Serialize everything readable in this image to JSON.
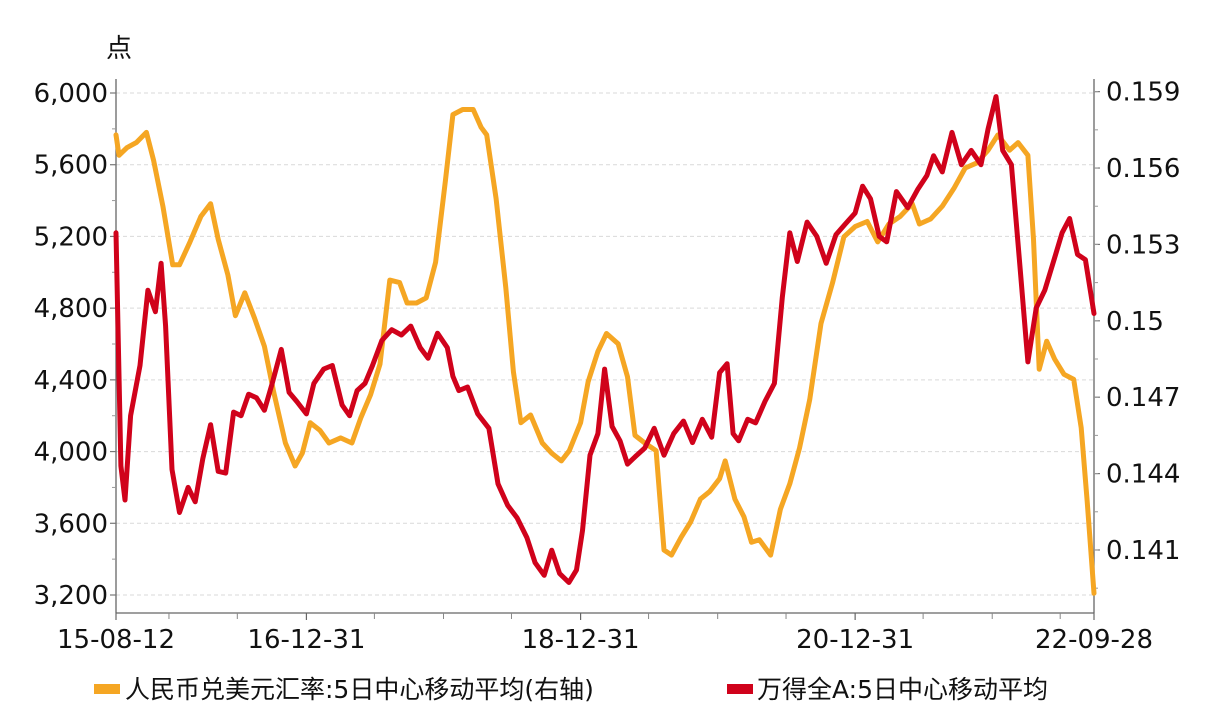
{
  "chart_data": {
    "type": "line",
    "left_unit": "点",
    "grid": true,
    "legend_position": "bottom",
    "x_tick_labels": [
      "15-08-12",
      "16-12-31",
      "18-12-31",
      "20-12-31",
      "22-09-28"
    ],
    "x_range": [
      "2015-08-12",
      "2022-09-28"
    ],
    "left_axis": {
      "ticks": [
        "3,200",
        "3,600",
        "4,000",
        "4,400",
        "4,800",
        "5,200",
        "5,600",
        "6,000"
      ],
      "range": [
        3200,
        6000
      ]
    },
    "right_axis": {
      "ticks": [
        "0.141",
        "0.144",
        "0.147",
        "0.15",
        "0.153",
        "0.156",
        "0.159"
      ],
      "range": [
        0.1388,
        0.1593
      ]
    },
    "series": [
      {
        "name": "人民币兑美元汇率:5日中心移动平均(右轴)",
        "axis": "right",
        "color": "#F5A623",
        "x": [
          "2015-08-12",
          "2015-08-20",
          "2015-09-10",
          "2015-10-05",
          "2015-11-01",
          "2015-11-20",
          "2015-12-15",
          "2016-01-10",
          "2016-01-28",
          "2016-02-25",
          "2016-03-25",
          "2016-04-20",
          "2016-05-10",
          "2016-06-05",
          "2016-06-25",
          "2016-07-20",
          "2016-08-15",
          "2016-09-10",
          "2016-10-05",
          "2016-11-05",
          "2016-12-01",
          "2016-12-20",
          "2017-01-10",
          "2017-02-05",
          "2017-03-01",
          "2017-04-01",
          "2017-05-01",
          "2017-05-25",
          "2017-06-20",
          "2017-07-15",
          "2017-08-10",
          "2017-09-05",
          "2017-09-25",
          "2017-10-20",
          "2017-11-15",
          "2017-12-10",
          "2018-01-05",
          "2018-01-25",
          "2018-02-20",
          "2018-03-20",
          "2018-04-10",
          "2018-04-25",
          "2018-05-20",
          "2018-06-15",
          "2018-07-05",
          "2018-07-25",
          "2018-08-20",
          "2018-09-20",
          "2018-10-15",
          "2018-11-10",
          "2018-12-01",
          "2018-12-31",
          "2019-01-20",
          "2019-02-15",
          "2019-03-10",
          "2019-04-10",
          "2019-05-05",
          "2019-05-25",
          "2019-06-20",
          "2019-07-20",
          "2019-08-10",
          "2019-08-30",
          "2019-09-25",
          "2019-10-20",
          "2019-11-15",
          "2019-12-10",
          "2020-01-05",
          "2020-01-20",
          "2020-02-15",
          "2020-03-10",
          "2020-03-30",
          "2020-04-20",
          "2020-05-20",
          "2020-06-15",
          "2020-07-10",
          "2020-08-05",
          "2020-09-01",
          "2020-10-01",
          "2020-11-01",
          "2020-12-01",
          "2020-12-31",
          "2021-02-01",
          "2021-03-01",
          "2021-03-31",
          "2021-04-30",
          "2021-06-01",
          "2021-06-20",
          "2021-07-20",
          "2021-08-20",
          "2021-09-20",
          "2021-10-20",
          "2021-11-20",
          "2021-12-20",
          "2022-01-15",
          "2022-02-15",
          "2022-03-10",
          "2022-04-05",
          "2022-04-20",
          "2022-05-05",
          "2022-05-25",
          "2022-06-15",
          "2022-07-10",
          "2022-08-05",
          "2022-08-25",
          "2022-09-10",
          "2022-09-28"
        ],
        "values": [
          0.1573,
          0.1565,
          0.1568,
          0.157,
          0.1574,
          0.1563,
          0.1545,
          0.1522,
          0.1522,
          0.1531,
          0.1541,
          0.1546,
          0.1532,
          0.1518,
          0.1502,
          0.1511,
          0.1501,
          0.149,
          0.1472,
          0.1452,
          0.1443,
          0.1448,
          0.146,
          0.1457,
          0.1452,
          0.1454,
          0.1452,
          0.1462,
          0.1471,
          0.1483,
          0.1516,
          0.1515,
          0.1507,
          0.1507,
          0.1509,
          0.1523,
          0.1555,
          0.1581,
          0.1583,
          0.1583,
          0.1576,
          0.1573,
          0.1548,
          0.1513,
          0.148,
          0.146,
          0.1463,
          0.1452,
          0.1448,
          0.1445,
          0.1449,
          0.146,
          0.1476,
          0.1488,
          0.1495,
          0.1491,
          0.1478,
          0.1455,
          0.1452,
          0.1449,
          0.141,
          0.1408,
          0.1415,
          0.1421,
          0.143,
          0.1433,
          0.1438,
          0.1445,
          0.143,
          0.1423,
          0.1413,
          0.1414,
          0.1408,
          0.1426,
          0.1436,
          0.145,
          0.1469,
          0.1499,
          0.1515,
          0.1533,
          0.1537,
          0.1539,
          0.1531,
          0.1538,
          0.1541,
          0.1546,
          0.1538,
          0.154,
          0.1545,
          0.1552,
          0.156,
          0.1562,
          0.1567,
          0.1573,
          0.1567,
          0.157,
          0.1565,
          0.1532,
          0.1481,
          0.1492,
          0.1485,
          0.1479,
          0.1477,
          0.1458,
          0.1429,
          0.1393
        ]
      },
      {
        "name": "万得全A:5日中心移动平均",
        "axis": "left",
        "color": "#D0021B",
        "x": [
          "2015-08-12",
          "2015-08-25",
          "2015-09-05",
          "2015-09-20",
          "2015-10-15",
          "2015-11-05",
          "2015-11-25",
          "2015-12-10",
          "2015-12-22",
          "2016-01-08",
          "2016-01-28",
          "2016-02-20",
          "2016-03-10",
          "2016-03-30",
          "2016-04-20",
          "2016-05-10",
          "2016-05-30",
          "2016-06-20",
          "2016-07-10",
          "2016-07-30",
          "2016-08-20",
          "2016-09-10",
          "2016-10-01",
          "2016-10-25",
          "2016-11-15",
          "2016-12-05",
          "2016-12-31",
          "2017-01-20",
          "2017-02-15",
          "2017-03-10",
          "2017-04-05",
          "2017-04-25",
          "2017-05-15",
          "2017-06-05",
          "2017-06-25",
          "2017-07-20",
          "2017-08-15",
          "2017-09-10",
          "2017-10-05",
          "2017-10-30",
          "2017-11-20",
          "2017-12-15",
          "2018-01-10",
          "2018-01-25",
          "2018-02-10",
          "2018-03-05",
          "2018-04-01",
          "2018-05-01",
          "2018-05-25",
          "2018-06-20",
          "2018-07-15",
          "2018-08-10",
          "2018-09-01",
          "2018-09-25",
          "2018-10-15",
          "2018-11-05",
          "2018-11-30",
          "2018-12-20",
          "2019-01-05",
          "2019-01-25",
          "2019-02-15",
          "2019-03-05",
          "2019-03-25",
          "2019-04-15",
          "2019-05-05",
          "2019-05-25",
          "2019-06-20",
          "2019-07-15",
          "2019-08-10",
          "2019-09-05",
          "2019-10-01",
          "2019-10-25",
          "2019-11-20",
          "2019-12-15",
          "2020-01-05",
          "2020-01-25",
          "2020-02-10",
          "2020-02-25",
          "2020-03-20",
          "2020-04-10",
          "2020-05-05",
          "2020-05-30",
          "2020-06-20",
          "2020-07-10",
          "2020-07-30",
          "2020-08-25",
          "2020-09-20",
          "2020-10-15",
          "2020-11-10",
          "2020-12-05",
          "2020-12-31",
          "2021-01-20",
          "2021-02-10",
          "2021-03-05",
          "2021-03-25",
          "2021-04-20",
          "2021-05-20",
          "2021-06-15",
          "2021-07-10",
          "2021-07-28",
          "2021-08-20",
          "2021-09-15",
          "2021-10-10",
          "2021-11-05",
          "2021-12-01",
          "2021-12-20",
          "2022-01-10",
          "2022-01-28",
          "2022-02-20",
          "2022-03-15",
          "2022-04-05",
          "2022-04-27",
          "2022-05-20",
          "2022-06-15",
          "2022-07-05",
          "2022-07-25",
          "2022-08-15",
          "2022-09-05",
          "2022-09-28"
        ],
        "values": [
          5220,
          3920,
          3730,
          4200,
          4480,
          4900,
          4780,
          5050,
          4700,
          3900,
          3660,
          3800,
          3720,
          3960,
          4150,
          3890,
          3880,
          4220,
          4200,
          4320,
          4300,
          4230,
          4380,
          4570,
          4330,
          4280,
          4210,
          4380,
          4460,
          4480,
          4260,
          4200,
          4340,
          4380,
          4480,
          4620,
          4680,
          4650,
          4700,
          4580,
          4520,
          4660,
          4580,
          4420,
          4340,
          4360,
          4210,
          4130,
          3820,
          3700,
          3630,
          3520,
          3380,
          3310,
          3450,
          3320,
          3270,
          3340,
          3560,
          3980,
          4100,
          4460,
          4140,
          4060,
          3930,
          3970,
          4020,
          4130,
          3980,
          4100,
          4170,
          4050,
          4180,
          4080,
          4440,
          4490,
          4100,
          4060,
          4180,
          4160,
          4280,
          4380,
          4860,
          5220,
          5060,
          5280,
          5200,
          5050,
          5210,
          5270,
          5330,
          5480,
          5410,
          5200,
          5170,
          5450,
          5360,
          5460,
          5540,
          5650,
          5560,
          5780,
          5600,
          5680,
          5600,
          5800,
          5980,
          5680,
          5600,
          5030,
          4500,
          4800,
          4900,
          5080,
          5220,
          5300,
          5100,
          5070,
          4770
        ]
      }
    ]
  }
}
